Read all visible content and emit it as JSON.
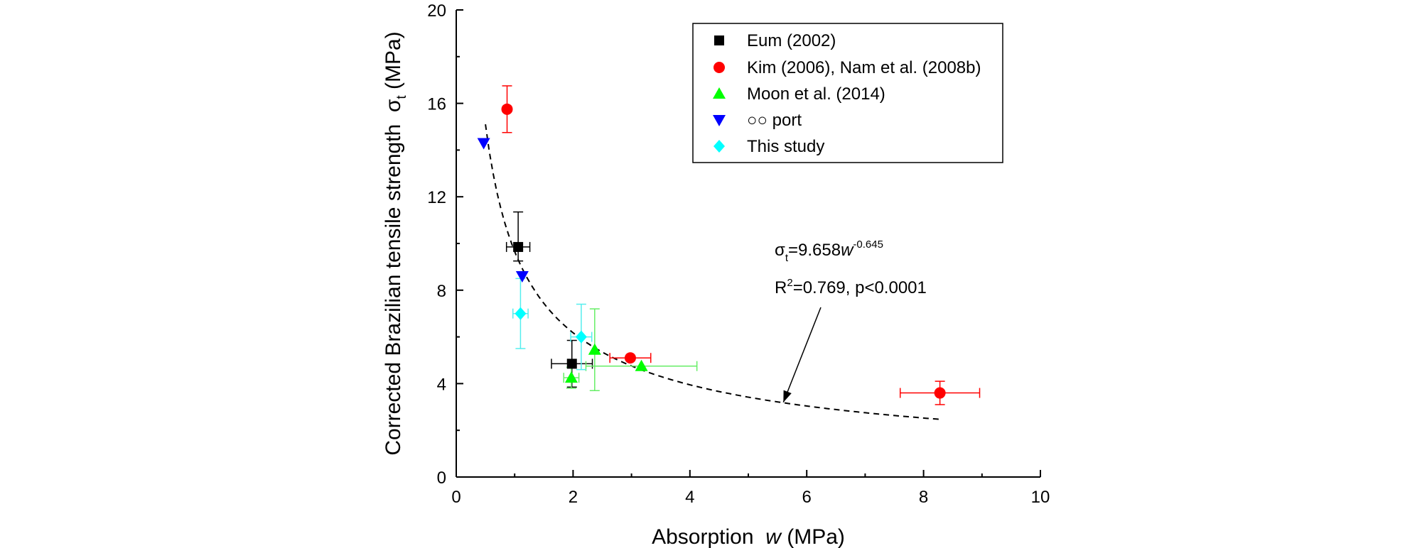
{
  "chart_data": {
    "type": "scatter",
    "xlabel": {
      "prefix": "Absorption  ",
      "var": "w",
      "suffix": " (MPa)"
    },
    "ylabel": {
      "prefix": "Corrected Brazilian tensile strength  ",
      "var": "σ",
      "sub": "t",
      "suffix": " (MPa)"
    },
    "xlim": [
      0,
      10
    ],
    "ylim": [
      0,
      20
    ],
    "xticks": [
      0,
      2,
      4,
      6,
      8,
      10
    ],
    "yticks": [
      0,
      4,
      8,
      12,
      16,
      20
    ],
    "grid": false,
    "legend_position": "top-right",
    "series": [
      {
        "name": "Eum (2002)",
        "marker": "square",
        "color": "#000000",
        "error_color": "#000000",
        "points": [
          {
            "x": 1.06,
            "y": 9.85,
            "xerr": [
              0.2,
              0.2
            ],
            "yerr": [
              0.6,
              1.5
            ]
          },
          {
            "x": 1.98,
            "y": 4.85,
            "xerr": [
              0.35,
              0.35
            ],
            "yerr": [
              1.0,
              1.0
            ]
          }
        ]
      },
      {
        "name": "Kim (2006), Nam et al. (2008b)",
        "marker": "circle",
        "color": "#ff0000",
        "error_color": "#ff0000",
        "points": [
          {
            "x": 0.87,
            "y": 15.75,
            "xerr": [
              0,
              0
            ],
            "yerr": [
              1.0,
              1.0
            ]
          },
          {
            "x": 2.98,
            "y": 5.1,
            "xerr": [
              0.35,
              0.35
            ],
            "yerr": [
              0,
              0
            ]
          },
          {
            "x": 8.28,
            "y": 3.6,
            "xerr": [
              0.68,
              0.68
            ],
            "yerr": [
              0.5,
              0.5
            ]
          }
        ]
      },
      {
        "name": "Moon et al. (2014)",
        "marker": "triangle-up",
        "color": "#00ff00",
        "error_color": "#66ee66",
        "points": [
          {
            "x": 1.97,
            "y": 4.25,
            "xerr": [
              0.13,
              0.13
            ],
            "yerr": [
              0.45,
              0.45
            ]
          },
          {
            "x": 2.37,
            "y": 5.45,
            "xerr": [
              0,
              0
            ],
            "yerr": [
              1.75,
              1.75
            ]
          },
          {
            "x": 3.17,
            "y": 4.75,
            "xerr": [
              0.95,
              0.95
            ],
            "yerr": [
              0,
              0
            ]
          }
        ]
      },
      {
        "name": "○○ port",
        "marker": "triangle-down",
        "color": "#0000ff",
        "error_color": "#0000ff",
        "points": [
          {
            "x": 0.47,
            "y": 14.3,
            "xerr": [
              0,
              0
            ],
            "yerr": [
              0,
              0
            ]
          },
          {
            "x": 1.13,
            "y": 8.6,
            "xerr": [
              0,
              0
            ],
            "yerr": [
              0,
              0
            ]
          }
        ]
      },
      {
        "name": "This study",
        "marker": "diamond",
        "color": "#00ffff",
        "error_color": "#55eeee",
        "points": [
          {
            "x": 1.1,
            "y": 7.0,
            "xerr": [
              0.13,
              0.13
            ],
            "yerr": [
              1.5,
              1.5
            ]
          },
          {
            "x": 2.14,
            "y": 6.0,
            "xerr": [
              0.18,
              0.18
            ],
            "yerr": [
              1.4,
              1.4
            ]
          }
        ]
      }
    ],
    "fit": {
      "name": "power-law fit",
      "coefficient": 9.658,
      "exponent": -0.645,
      "x_range": [
        0.5,
        8.3
      ],
      "style": "dashed"
    },
    "annotations": {
      "equation": {
        "sym": "σ",
        "sub": "t",
        "eq": "=9.658",
        "var": "w",
        "sup": "-0.645"
      },
      "r2": {
        "lead": "R",
        "sup": "2",
        "rest": "=0.769, p<0.0001"
      },
      "arrow_target": {
        "x": 5.6,
        "y": 3.2
      }
    }
  }
}
